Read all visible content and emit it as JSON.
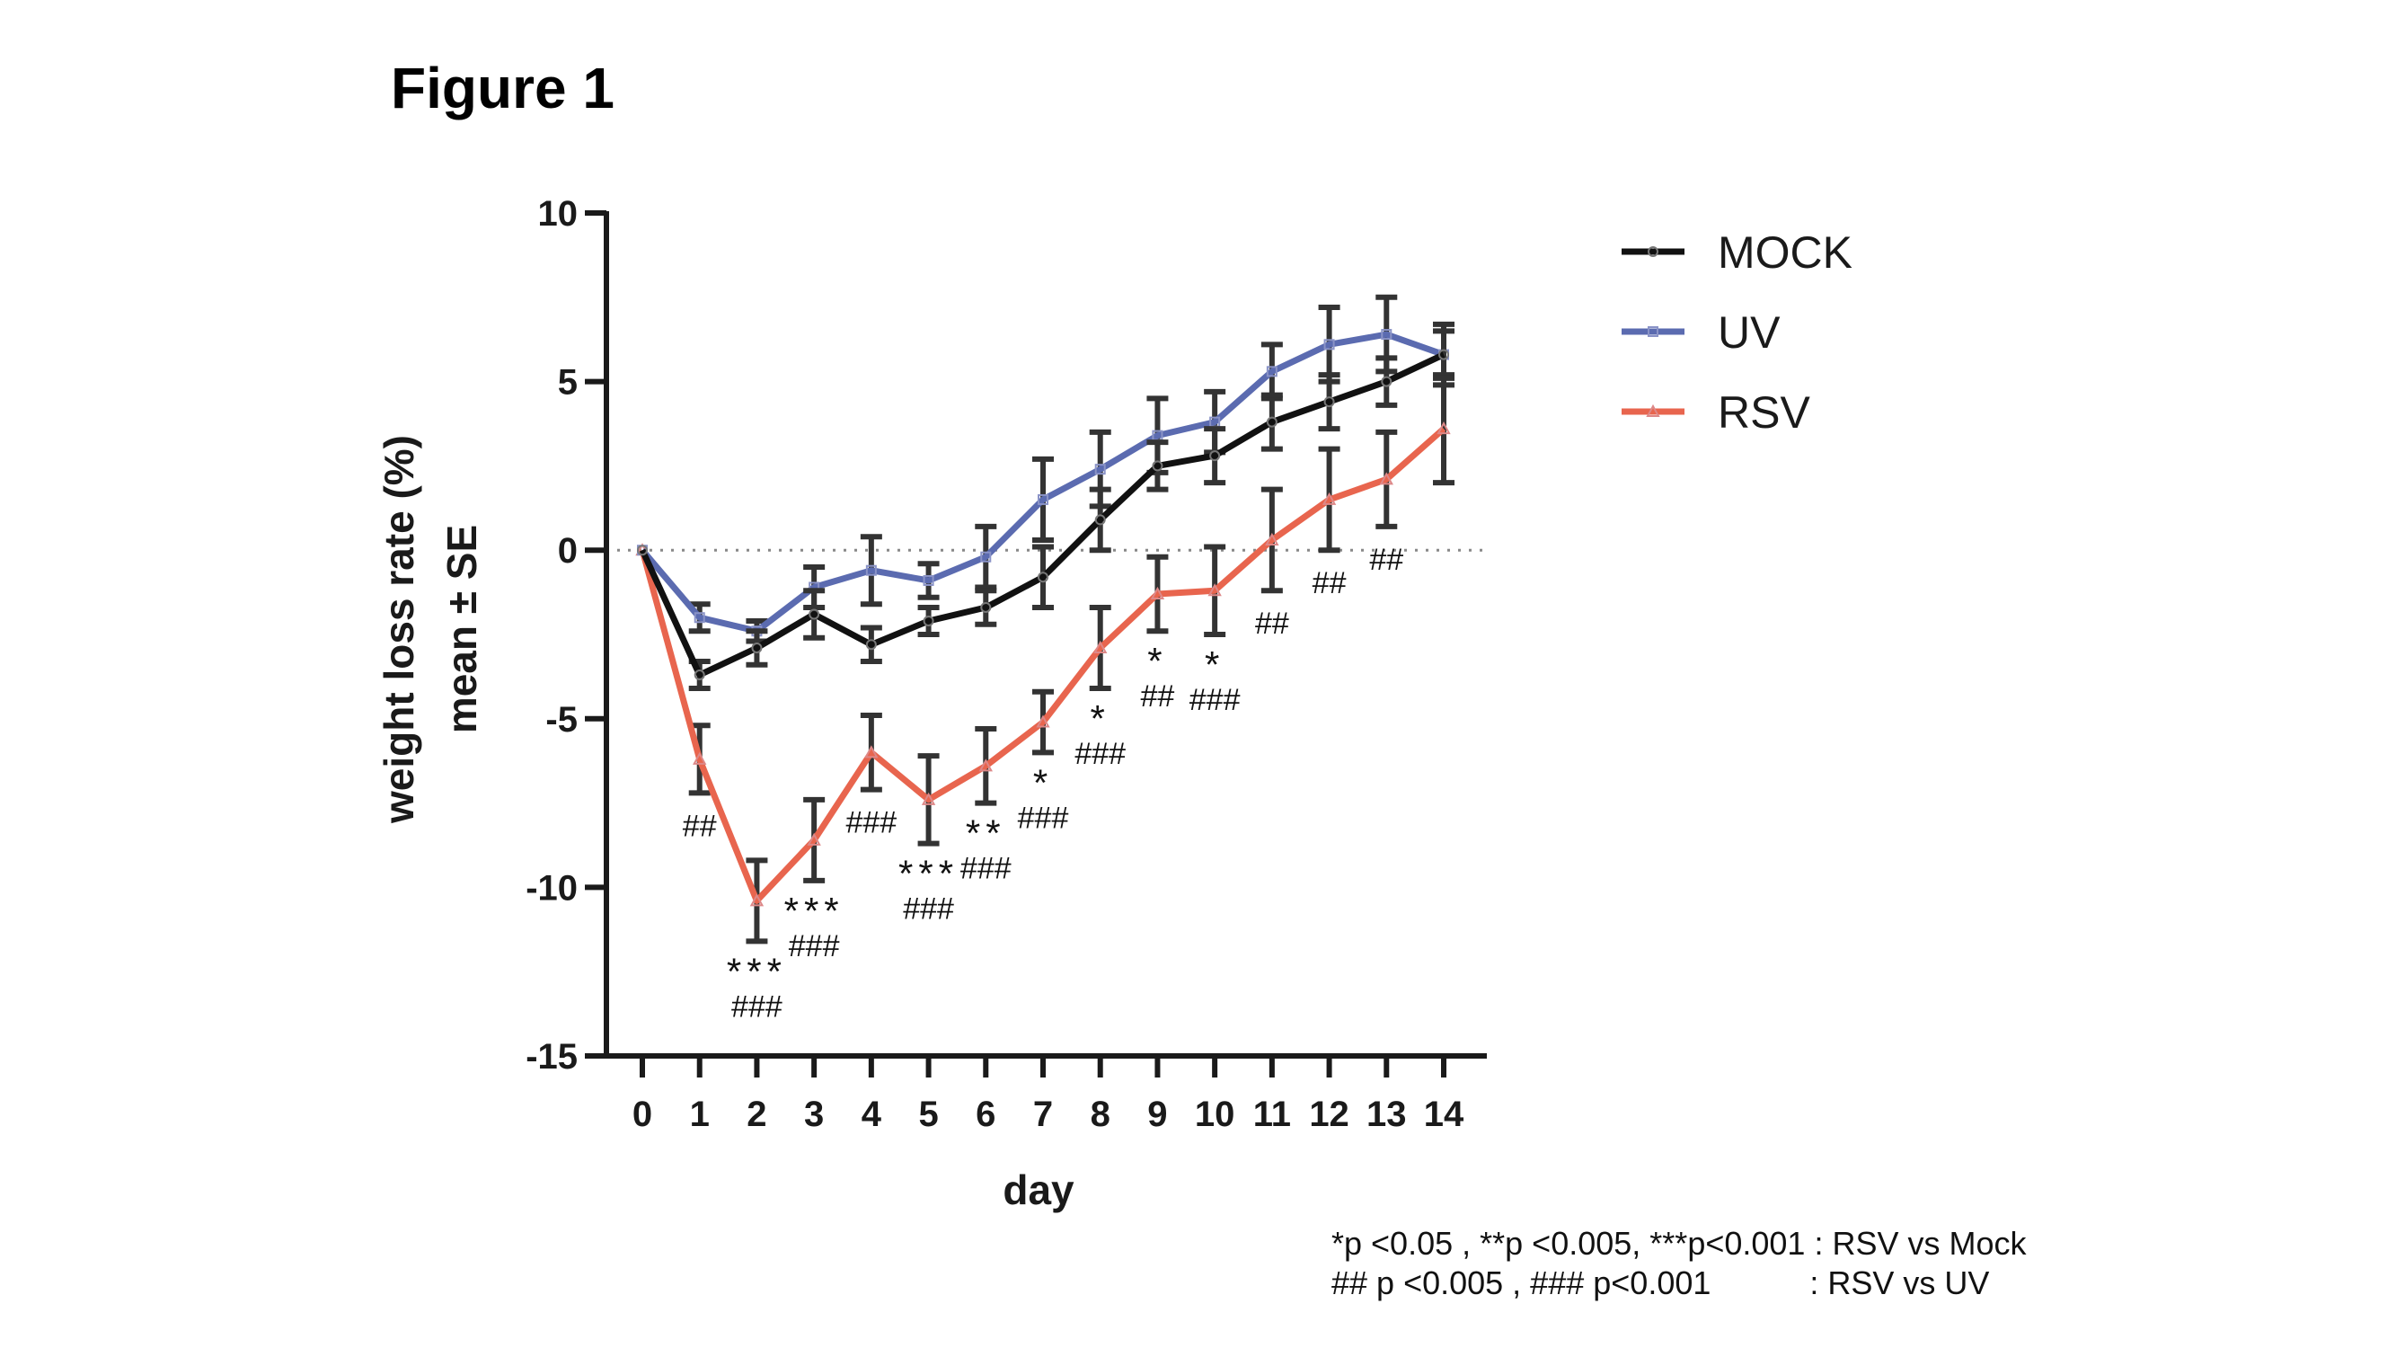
{
  "figure_title": "Figure 1",
  "footnotes": [
    "*p <0.05 , **p <0.005, ***p<0.001 : RSV vs Mock",
    "## p <0.005 , ### p<0.001           : RSV vs UV"
  ],
  "colors": {
    "MOCK": "#111111",
    "UV": "#5b6bb0",
    "RSV": "#e8654e",
    "errorbar": "#333333"
  },
  "chart_data": {
    "type": "line",
    "title": "",
    "xlabel": "day",
    "ylabel": "weight loss rate (%)",
    "ylabel2": "mean ± SE",
    "xlim": [
      0,
      14
    ],
    "ylim": [
      -15,
      10
    ],
    "yticks": [
      10,
      5,
      0,
      -5,
      -10,
      -15
    ],
    "ytick_labels": [
      "10",
      "5",
      "0",
      "-5",
      "-10",
      "-15"
    ],
    "x": [
      0,
      1,
      2,
      3,
      4,
      5,
      6,
      7,
      8,
      9,
      10,
      11,
      12,
      13,
      14
    ],
    "xtick_labels": [
      "0",
      "1",
      "2",
      "3",
      "4",
      "5",
      "6",
      "7",
      "8",
      "9",
      "10",
      "11",
      "12",
      "13",
      "14"
    ],
    "reference_line": 0,
    "legend_position": "top-right outside",
    "series": [
      {
        "name": "MOCK",
        "marker": "circle",
        "values": [
          0,
          -3.7,
          -2.9,
          -1.9,
          -2.8,
          -2.1,
          -1.7,
          -0.8,
          0.9,
          2.5,
          2.8,
          3.8,
          4.4,
          5.0,
          5.8
        ],
        "errors": [
          0,
          0.4,
          0.5,
          0.7,
          0.5,
          0.4,
          0.5,
          0.9,
          0.9,
          0.7,
          0.8,
          0.8,
          0.8,
          0.7,
          0.7
        ]
      },
      {
        "name": "UV",
        "marker": "square",
        "values": [
          0,
          -2.0,
          -2.4,
          -1.1,
          -0.6,
          -0.9,
          -0.2,
          1.5,
          2.4,
          3.4,
          3.8,
          5.3,
          6.1,
          6.4,
          5.8
        ],
        "errors": [
          0,
          0.4,
          0.3,
          0.6,
          1.0,
          0.5,
          0.9,
          1.2,
          1.1,
          1.1,
          0.9,
          0.8,
          1.1,
          1.1,
          0.9
        ]
      },
      {
        "name": "RSV",
        "marker": "triangle",
        "values": [
          0,
          -6.2,
          -10.4,
          -8.6,
          -6.0,
          -7.4,
          -6.4,
          -5.1,
          -2.9,
          -1.3,
          -1.2,
          0.3,
          1.5,
          2.1,
          3.6
        ],
        "errors": [
          0,
          1.0,
          1.2,
          1.2,
          1.1,
          1.3,
          1.1,
          0.9,
          1.2,
          1.1,
          1.3,
          1.5,
          1.5,
          1.4,
          1.6
        ]
      }
    ],
    "annotations": [
      {
        "day": 1,
        "stars": "",
        "hashes": "##"
      },
      {
        "day": 2,
        "stars": "***",
        "hashes": "###"
      },
      {
        "day": 3,
        "stars": "***",
        "hashes": "###"
      },
      {
        "day": 4,
        "stars": "",
        "hashes": "###"
      },
      {
        "day": 5,
        "stars": "***",
        "hashes": "###"
      },
      {
        "day": 6,
        "stars": "**",
        "hashes": "###"
      },
      {
        "day": 7,
        "stars": "*",
        "hashes": "###"
      },
      {
        "day": 8,
        "stars": "*",
        "hashes": "###"
      },
      {
        "day": 9,
        "stars": "*",
        "hashes": "##"
      },
      {
        "day": 10,
        "stars": "*",
        "hashes": "###"
      },
      {
        "day": 11,
        "stars": "",
        "hashes": "##"
      },
      {
        "day": 12,
        "stars": "",
        "hashes": "##"
      },
      {
        "day": 13,
        "stars": "",
        "hashes": "##"
      }
    ]
  }
}
